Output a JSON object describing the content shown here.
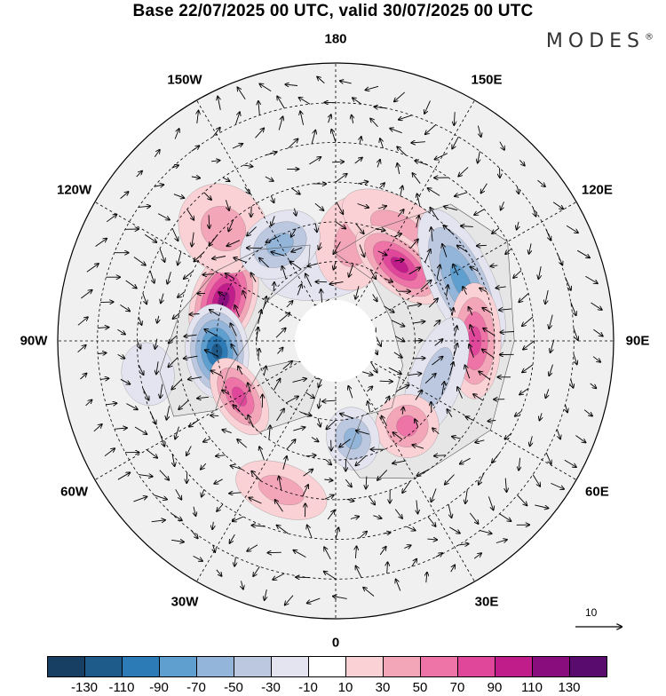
{
  "title": "Base 22/07/2025 00 UTC, valid 30/07/2025 00 UTC",
  "brand": "MODES",
  "brand_mark": "®",
  "reference_vector": {
    "value": "10"
  },
  "colors": {
    "ocean_base": "#f2f2f2",
    "land_base": "#e8e8e8",
    "grid": "#000000",
    "coast": "#555555"
  },
  "lon_labels": [
    {
      "text": "180",
      "lon": 180
    },
    {
      "text": "150E",
      "lon": 150
    },
    {
      "text": "120E",
      "lon": 120
    },
    {
      "text": "90E",
      "lon": 90
    },
    {
      "text": "60E",
      "lon": 60
    },
    {
      "text": "30E",
      "lon": 30
    },
    {
      "text": "0",
      "lon": 0
    },
    {
      "text": "30W",
      "lon": -30
    },
    {
      "text": "60W",
      "lon": -60
    },
    {
      "text": "90W",
      "lon": -90
    },
    {
      "text": "120W",
      "lon": -120
    },
    {
      "text": "150W",
      "lon": -150
    }
  ],
  "colorbar": {
    "colors": [
      "#173f63",
      "#1e5a8a",
      "#2c7bb6",
      "#5e9fcf",
      "#93b5d9",
      "#bcc8e0",
      "#e4e4f0",
      "#ffffff",
      "#fad2d5",
      "#f4a6b9",
      "#ee73a6",
      "#e0479b",
      "#c01c8a",
      "#8a0d7e",
      "#5a0c6e"
    ],
    "ticks": [
      "-130",
      "-110",
      "-90",
      "-70",
      "-50",
      "-30",
      "-10",
      "10",
      "30",
      "50",
      "70",
      "90",
      "110",
      "130"
    ]
  },
  "anomalies": [
    {
      "name": "alaska-low",
      "lon": -170,
      "lat": 70,
      "value": -25,
      "rx": 0.12,
      "ry": 0.07
    },
    {
      "name": "pacific-high-north",
      "lon": 170,
      "lat": 65,
      "value": 35,
      "rx": 0.07,
      "ry": 0.09
    },
    {
      "name": "nw-pacific-high",
      "lon": 150,
      "lat": 58,
      "value": 35,
      "rx": 0.12,
      "ry": 0.06
    },
    {
      "name": "siberia-high",
      "lon": 140,
      "lat": 65,
      "value": 95,
      "rx": 0.1,
      "ry": 0.05
    },
    {
      "name": "siberia-low",
      "lon": 115,
      "lat": 55,
      "value": -85,
      "rx": 0.15,
      "ry": 0.06
    },
    {
      "name": "asia-high",
      "lon": 90,
      "lat": 55,
      "value": 75,
      "rx": 0.11,
      "ry": 0.05
    },
    {
      "name": "central-asia-low",
      "lon": 70,
      "lat": 63,
      "value": -45,
      "rx": 0.12,
      "ry": 0.05
    },
    {
      "name": "europe-high",
      "lon": 40,
      "lat": 62,
      "value": 55,
      "rx": 0.06,
      "ry": 0.06
    },
    {
      "name": "scandinavia-low",
      "lon": 10,
      "lat": 65,
      "value": -60,
      "rx": 0.05,
      "ry": 0.06
    },
    {
      "name": "atlantic-weak-high",
      "lon": -20,
      "lat": 50,
      "value": 30,
      "rx": 0.09,
      "ry": 0.05
    },
    {
      "name": "canada-high",
      "lon": -110,
      "lat": 60,
      "value": 115,
      "rx": 0.1,
      "ry": 0.06
    },
    {
      "name": "canada-low",
      "lon": -85,
      "lat": 60,
      "value": -110,
      "rx": 0.09,
      "ry": 0.06
    },
    {
      "name": "labrador-high",
      "lon": -60,
      "lat": 62,
      "value": 70,
      "rx": 0.08,
      "ry": 0.045
    },
    {
      "name": "pacific-east-high",
      "lon": -135,
      "lat": 50,
      "value": 30,
      "rx": 0.08,
      "ry": 0.09
    },
    {
      "name": "canada-west-low",
      "lon": -150,
      "lat": 62,
      "value": -55,
      "rx": 0.08,
      "ry": 0.06
    },
    {
      "name": "nw-atlantic-weak",
      "lon": -80,
      "lat": 42,
      "value": -15,
      "rx": 0.06,
      "ry": 0.05
    }
  ]
}
